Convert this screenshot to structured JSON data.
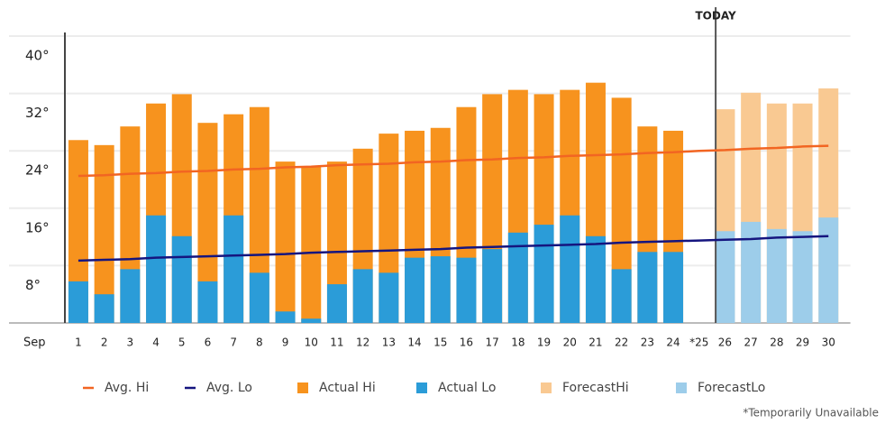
{
  "chart_data": {
    "type": "bar",
    "x_label": "Sep",
    "annotation": "TODAY",
    "annotation_at": "26",
    "footnote": "*Temporarily Unavailable",
    "categories": [
      "1",
      "2",
      "3",
      "4",
      "5",
      "6",
      "7",
      "8",
      "9",
      "10",
      "11",
      "12",
      "13",
      "14",
      "15",
      "16",
      "17",
      "18",
      "19",
      "20",
      "21",
      "22",
      "23",
      "24",
      "*25",
      "26",
      "27",
      "28",
      "29",
      "30"
    ],
    "ylim": [
      0,
      40
    ],
    "yticks": [
      {
        "value": 8,
        "label": "8°"
      },
      {
        "value": 16,
        "label": "16°"
      },
      {
        "value": 24,
        "label": "24°"
      },
      {
        "value": 32,
        "label": "32°"
      },
      {
        "value": 40,
        "label": "40°"
      }
    ],
    "grid": true,
    "series": [
      {
        "name": "Avg. Hi",
        "type": "line",
        "color": "#f26522",
        "values": [
          20.5,
          20.6,
          20.8,
          20.9,
          21.1,
          21.2,
          21.4,
          21.5,
          21.7,
          21.8,
          22.0,
          22.1,
          22.2,
          22.4,
          22.5,
          22.7,
          22.8,
          23.0,
          23.1,
          23.3,
          23.4,
          23.5,
          23.7,
          23.8,
          24.0,
          24.1,
          24.3,
          24.4,
          24.6,
          24.7
        ]
      },
      {
        "name": "Avg. Lo",
        "type": "line",
        "color": "#15157f",
        "values": [
          8.7,
          8.8,
          8.9,
          9.1,
          9.2,
          9.3,
          9.4,
          9.5,
          9.6,
          9.8,
          9.9,
          10.0,
          10.1,
          10.2,
          10.3,
          10.5,
          10.6,
          10.7,
          10.8,
          10.9,
          11.0,
          11.2,
          11.3,
          11.4,
          11.5,
          11.6,
          11.7,
          11.9,
          12.0,
          12.1
        ]
      },
      {
        "name": "Actual Hi",
        "type": "bar",
        "color": "#f7931e",
        "values": [
          25.5,
          24.8,
          27.4,
          30.6,
          31.9,
          27.9,
          29.1,
          30.1,
          22.5,
          21.8,
          22.5,
          24.3,
          26.4,
          26.8,
          27.2,
          30.1,
          31.9,
          32.5,
          31.9,
          32.5,
          33.5,
          31.4,
          27.4,
          26.8,
          null,
          null,
          null,
          null,
          null,
          null
        ]
      },
      {
        "name": "Actual Lo",
        "type": "bar",
        "color": "#2b9cd8",
        "values": [
          5.8,
          4.0,
          7.5,
          15.0,
          12.1,
          5.8,
          15.0,
          7.0,
          1.6,
          0.6,
          5.4,
          7.5,
          7.0,
          9.1,
          9.3,
          9.1,
          10.3,
          12.6,
          13.7,
          15.0,
          12.1,
          7.5,
          9.9,
          9.9,
          null,
          null,
          null,
          null,
          null,
          null
        ]
      },
      {
        "name": "ForecastHi",
        "type": "bar",
        "color": "#f9c992",
        "values": [
          null,
          null,
          null,
          null,
          null,
          null,
          null,
          null,
          null,
          null,
          null,
          null,
          null,
          null,
          null,
          null,
          null,
          null,
          null,
          null,
          null,
          null,
          null,
          null,
          null,
          29.8,
          32.1,
          30.6,
          30.6,
          32.7
        ]
      },
      {
        "name": "ForecastLo",
        "type": "bar",
        "color": "#9dcdea",
        "values": [
          null,
          null,
          null,
          null,
          null,
          null,
          null,
          null,
          null,
          null,
          null,
          null,
          null,
          null,
          null,
          null,
          null,
          null,
          null,
          null,
          null,
          null,
          null,
          null,
          null,
          12.8,
          14.1,
          13.1,
          12.8,
          14.7
        ]
      }
    ]
  }
}
